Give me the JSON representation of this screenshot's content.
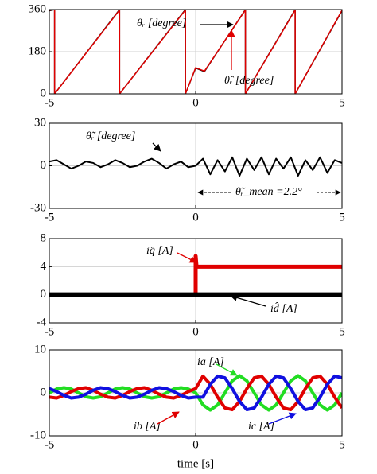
{
  "chart_data": [
    {
      "type": "line",
      "xlim": [
        -5,
        5
      ],
      "xticks": [
        -5,
        0,
        5
      ],
      "ylim": [
        0,
        360
      ],
      "yticks": [
        0,
        180,
        360
      ],
      "grid": true,
      "series": [
        {
          "name": "θᵣ [degree]",
          "color": "#000000",
          "x": [
            -5,
            -4.82,
            -4.82,
            -2.6,
            -2.6,
            -0.35,
            -0.35,
            0,
            0.3,
            1.7,
            1.7,
            3.4,
            3.4,
            5
          ],
          "values": [
            355,
            360,
            0,
            360,
            0,
            360,
            0,
            110,
            95,
            360,
            0,
            360,
            0,
            355
          ]
        },
        {
          "name": "θ̂ᵣ [degree]",
          "color": "#e00000",
          "x": [
            -5,
            -4.82,
            -4.82,
            -2.6,
            -2.6,
            -0.35,
            -0.35,
            0,
            0.3,
            1.7,
            1.7,
            3.4,
            3.4,
            5
          ],
          "values": [
            358,
            360,
            0,
            358,
            0,
            358,
            0,
            112,
            97,
            358,
            0,
            358,
            0,
            357
          ]
        }
      ]
    },
    {
      "type": "line",
      "xlim": [
        -5,
        5
      ],
      "xticks": [
        -5,
        0,
        5
      ],
      "ylim": [
        -30,
        30
      ],
      "yticks": [
        -30,
        0,
        30
      ],
      "grid": true,
      "annotations": [
        "θ̃ᵣ_mean =2.2°"
      ],
      "x": [
        -5,
        -4.75,
        -4.5,
        -4.25,
        -4,
        -3.75,
        -3.5,
        -3.25,
        -3,
        -2.75,
        -2.5,
        -2.25,
        -2,
        -1.75,
        -1.5,
        -1.25,
        -1,
        -0.75,
        -0.5,
        -0.25,
        0,
        0.25,
        0.5,
        0.75,
        1,
        1.25,
        1.5,
        1.75,
        2,
        2.25,
        2.5,
        2.75,
        3,
        3.25,
        3.5,
        3.75,
        4,
        4.25,
        4.5,
        4.75,
        5
      ],
      "series": [
        {
          "name": "θ̃ᵣ [degree]",
          "color": "#000000",
          "values": [
            3,
            4,
            1,
            -2,
            0,
            3,
            2,
            -1,
            1,
            4,
            2,
            -1,
            0,
            3,
            5,
            2,
            -2,
            1,
            3,
            -1,
            0,
            5,
            -6,
            4,
            -4,
            6,
            -7,
            5,
            -3,
            6,
            -6,
            5,
            -2,
            6,
            -7,
            4,
            -3,
            6,
            -5,
            4,
            2
          ]
        }
      ]
    },
    {
      "type": "line",
      "xlim": [
        -5,
        5
      ],
      "xticks": [
        -5,
        0,
        5
      ],
      "ylim": [
        -4,
        8
      ],
      "yticks": [
        -4,
        0,
        4,
        8
      ],
      "grid": true,
      "series": [
        {
          "name": "iq̂ [A]",
          "color": "#e00000",
          "x": [
            -5,
            0,
            0,
            0.03,
            5
          ],
          "values": [
            0,
            0,
            5.5,
            4,
            4
          ]
        },
        {
          "name": "id̂ [A]",
          "color": "#000000",
          "x": [
            -5,
            5
          ],
          "values": [
            0,
            0
          ]
        }
      ]
    },
    {
      "type": "line",
      "xlim": [
        -5,
        5
      ],
      "xticks": [
        -5,
        0,
        5
      ],
      "ylim": [
        -10,
        10
      ],
      "yticks": [
        -10,
        0,
        10
      ],
      "grid": true,
      "xlabel": "time [s]",
      "x": [
        -5,
        -4.75,
        -4.5,
        -4.25,
        -4,
        -3.75,
        -3.5,
        -3.25,
        -3,
        -2.75,
        -2.5,
        -2.25,
        -2,
        -1.75,
        -1.5,
        -1.25,
        -1,
        -0.75,
        -0.5,
        -0.25,
        0,
        0.25,
        0.5,
        0.75,
        1,
        1.25,
        1.5,
        1.75,
        2,
        2.25,
        2.5,
        2.75,
        3,
        3.25,
        3.5,
        3.75,
        4,
        4.25,
        4.5,
        4.75,
        5
      ],
      "series": [
        {
          "name": "ia [A]",
          "color": "#22dd22",
          "values": [
            0,
            0.9,
            1.2,
            0.9,
            0,
            -0.9,
            -1.2,
            -0.9,
            0,
            0.9,
            1.2,
            0.9,
            0,
            -0.9,
            -1.2,
            -0.9,
            0,
            0.9,
            1.2,
            0.9,
            0,
            -2.8,
            -4,
            -2.8,
            0,
            2.8,
            4,
            2.8,
            0,
            -2.8,
            -4,
            -2.8,
            0,
            2.8,
            4,
            2.8,
            0,
            -2.8,
            -4,
            -2.8,
            0
          ]
        },
        {
          "name": "ib [A]",
          "color": "#e00000",
          "values": [
            -1,
            -1.2,
            -0.6,
            0.3,
            1,
            1.2,
            0.6,
            -0.3,
            -1,
            -1.2,
            -0.6,
            0.3,
            1,
            1.2,
            0.6,
            -0.3,
            -1,
            -1.2,
            -0.6,
            0.3,
            1,
            3.9,
            2,
            -1,
            -3.5,
            -3.9,
            -2,
            1,
            3.5,
            3.9,
            2,
            -1,
            -3.5,
            -3.9,
            -2,
            1,
            3.5,
            3.9,
            2,
            -1,
            -3.5
          ]
        },
        {
          "name": "ic [A]",
          "color": "#1010e0",
          "values": [
            1,
            0.3,
            -0.6,
            -1.2,
            -1,
            -0.3,
            0.6,
            1.2,
            1,
            0.3,
            -0.6,
            -1.2,
            -1,
            -0.3,
            0.6,
            1.2,
            1,
            0.3,
            -0.6,
            -1.2,
            -1,
            -1,
            2,
            3.9,
            3.5,
            1,
            -2,
            -3.9,
            -3.5,
            -1,
            2,
            3.9,
            3.5,
            1,
            -2,
            -3.9,
            -3.5,
            -1,
            2,
            3.9,
            3.5
          ]
        }
      ]
    }
  ]
}
